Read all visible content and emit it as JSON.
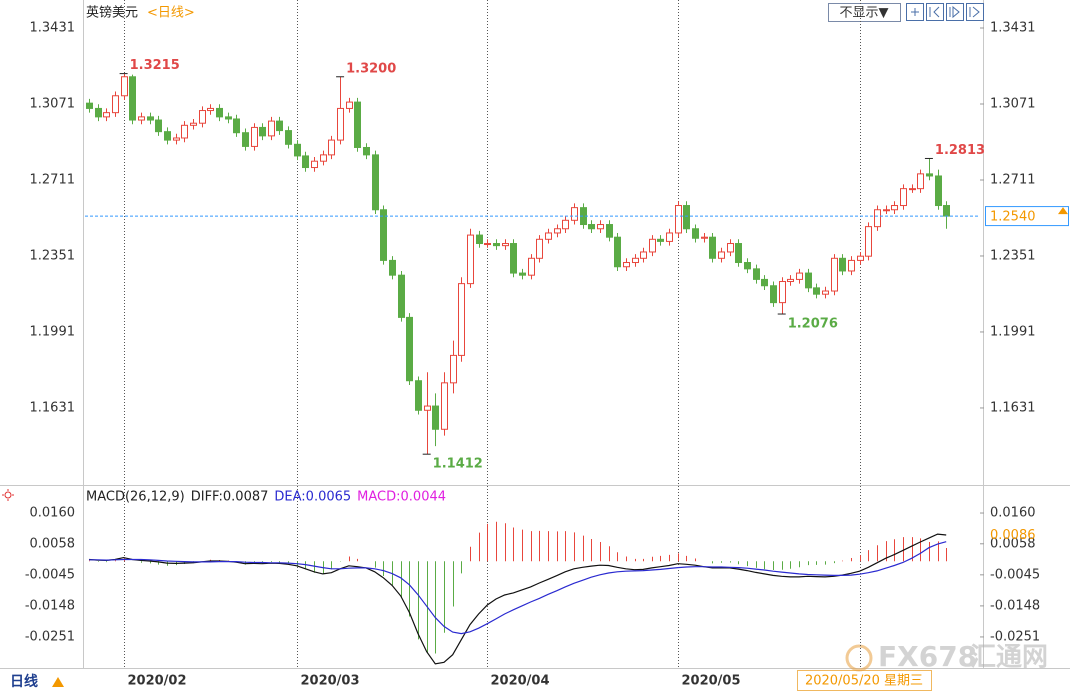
{
  "header": {
    "title": "英镑美元",
    "period": "<日线>",
    "button": "不显示▼"
  },
  "footer": {
    "period": "日线",
    "date": "2020/05/20 星期三"
  },
  "watermark": {
    "brand": "FX678",
    "site": "汇通网"
  },
  "chart_data": {
    "type": "candlestick",
    "up_color": "#e8463c",
    "down_color": "#5aab45",
    "xlim": [
      -0.46,
      102.9
    ],
    "xticks": [
      {
        "value": 4,
        "label": "2020/02"
      },
      {
        "value": 24,
        "label": "2020/03"
      },
      {
        "value": 46,
        "label": "2020/04"
      },
      {
        "value": 68,
        "label": "2020/05"
      },
      {
        "value": 89,
        "label": null
      }
    ],
    "ylim": [
      1.1266,
      1.354
    ],
    "yticks": [
      1.3431,
      1.3071,
      1.2711,
      1.2351,
      1.1991,
      1.1631
    ],
    "last_price": {
      "value": 1.254,
      "label": "1.2540"
    },
    "annotations": [
      {
        "value": 1.3215,
        "label": "1.3215"
      },
      {
        "value": 1.32,
        "label": "1.3200"
      },
      {
        "value": 1.1412,
        "label": "1.1412"
      },
      {
        "value": 1.2076,
        "label": "1.2076"
      },
      {
        "value": 1.2813,
        "label": "1.2813"
      }
    ],
    "candles": {
      "open": [
        1.3075,
        1.305,
        1.301,
        1.303,
        1.311,
        1.32,
        1.2995,
        1.301,
        1.2995,
        1.294,
        1.29,
        1.291,
        1.297,
        1.298,
        1.304,
        1.305,
        1.301,
        1.3,
        1.2935,
        1.287,
        1.296,
        1.292,
        1.299,
        1.2945,
        1.288,
        1.2825,
        1.277,
        1.28,
        1.283,
        1.29,
        1.305,
        1.308,
        1.2865,
        1.283,
        1.257,
        1.233,
        1.226,
        1.206,
        1.176,
        1.162,
        1.164,
        1.153,
        1.175,
        1.188,
        1.222,
        1.245,
        1.241,
        1.241,
        1.24,
        1.241,
        1.227,
        1.226,
        1.234,
        1.243,
        1.246,
        1.248,
        1.252,
        1.258,
        1.25,
        1.248,
        1.25,
        1.244,
        1.23,
        1.232,
        1.234,
        1.237,
        1.243,
        1.242,
        1.246,
        1.259,
        1.248,
        1.2435,
        1.244,
        1.234,
        1.237,
        1.241,
        1.232,
        1.229,
        1.224,
        1.221,
        1.213,
        1.223,
        1.224,
        1.227,
        1.22,
        1.217,
        1.2185,
        1.234,
        1.228,
        1.233,
        1.235,
        1.249,
        1.257,
        1.257,
        1.259,
        1.267,
        1.267,
        1.274,
        1.273,
        1.259
      ],
      "high": [
        1.3095,
        1.307,
        1.305,
        1.313,
        1.3215,
        1.321,
        1.303,
        1.303,
        1.3015,
        1.296,
        1.293,
        1.299,
        1.3,
        1.306,
        1.307,
        1.307,
        1.303,
        1.302,
        1.2955,
        1.298,
        1.298,
        1.301,
        1.301,
        1.2965,
        1.29,
        1.2845,
        1.282,
        1.285,
        1.292,
        1.32,
        1.31,
        1.31,
        1.2885,
        1.285,
        1.259,
        1.235,
        1.228,
        1.208,
        1.178,
        1.18,
        1.17,
        1.18,
        1.195,
        1.225,
        1.248,
        1.247,
        1.243,
        1.243,
        1.243,
        1.243,
        1.229,
        1.236,
        1.245,
        1.248,
        1.25,
        1.254,
        1.26,
        1.26,
        1.252,
        1.252,
        1.252,
        1.246,
        1.234,
        1.236,
        1.239,
        1.245,
        1.245,
        1.248,
        1.261,
        1.261,
        1.25,
        1.246,
        1.246,
        1.239,
        1.243,
        1.243,
        1.234,
        1.231,
        1.226,
        1.223,
        1.225,
        1.226,
        1.229,
        1.229,
        1.222,
        1.2205,
        1.236,
        1.236,
        1.235,
        1.237,
        1.251,
        1.259,
        1.259,
        1.261,
        1.269,
        1.269,
        1.276,
        1.2813,
        1.276,
        1.261
      ],
      "low": [
        1.303,
        1.299,
        1.299,
        1.301,
        1.309,
        1.2975,
        1.2975,
        1.2975,
        1.292,
        1.288,
        1.288,
        1.289,
        1.295,
        1.296,
        1.302,
        1.299,
        1.298,
        1.2915,
        1.285,
        1.285,
        1.29,
        1.29,
        1.2925,
        1.286,
        1.2805,
        1.275,
        1.275,
        1.278,
        1.281,
        1.288,
        1.303,
        1.2845,
        1.281,
        1.255,
        1.231,
        1.224,
        1.204,
        1.174,
        1.16,
        1.1412,
        1.145,
        1.15,
        1.17,
        1.185,
        1.22,
        1.239,
        1.239,
        1.238,
        1.238,
        1.225,
        1.224,
        1.224,
        1.232,
        1.241,
        1.244,
        1.246,
        1.25,
        1.248,
        1.246,
        1.246,
        1.242,
        1.228,
        1.228,
        1.23,
        1.232,
        1.235,
        1.24,
        1.24,
        1.244,
        1.246,
        1.2415,
        1.2415,
        1.232,
        1.232,
        1.235,
        1.23,
        1.227,
        1.222,
        1.219,
        1.211,
        1.2076,
        1.221,
        1.222,
        1.218,
        1.215,
        1.215,
        1.2165,
        1.226,
        1.226,
        1.231,
        1.233,
        1.247,
        1.255,
        1.255,
        1.257,
        1.265,
        1.265,
        1.271,
        1.257,
        1.248
      ],
      "close": [
        1.305,
        1.301,
        1.303,
        1.311,
        1.32,
        1.2995,
        1.301,
        1.2995,
        1.294,
        1.29,
        1.291,
        1.297,
        1.298,
        1.304,
        1.305,
        1.301,
        1.3,
        1.2935,
        1.287,
        1.296,
        1.292,
        1.299,
        1.2945,
        1.288,
        1.2825,
        1.277,
        1.28,
        1.283,
        1.29,
        1.305,
        1.308,
        1.2865,
        1.283,
        1.257,
        1.233,
        1.226,
        1.206,
        1.176,
        1.162,
        1.164,
        1.153,
        1.175,
        1.188,
        1.222,
        1.245,
        1.241,
        1.241,
        1.24,
        1.241,
        1.227,
        1.226,
        1.234,
        1.243,
        1.246,
        1.248,
        1.252,
        1.258,
        1.25,
        1.248,
        1.25,
        1.244,
        1.23,
        1.232,
        1.234,
        1.237,
        1.243,
        1.242,
        1.246,
        1.259,
        1.248,
        1.2435,
        1.244,
        1.234,
        1.237,
        1.241,
        1.232,
        1.229,
        1.224,
        1.221,
        1.213,
        1.223,
        1.224,
        1.227,
        1.22,
        1.217,
        1.2185,
        1.234,
        1.228,
        1.233,
        1.235,
        1.249,
        1.257,
        1.257,
        1.259,
        1.267,
        1.267,
        1.274,
        1.273,
        1.259,
        1.254
      ]
    },
    "macd": {
      "type": "macd",
      "legend": [
        "MACD(26,12,9)",
        "DIFF:0.0087",
        "DEA:0.0065",
        "MACD:0.0044"
      ],
      "legend_colors": [
        "#222222",
        "#222222",
        "#2a2ad0",
        "#e020e0"
      ],
      "ylim": [
        -0.0354,
        0.0243
      ],
      "yticks": [
        {
          "value": 0.016,
          "label": "0.0160"
        },
        0.0058,
        -0.0045,
        -0.0148,
        -0.0251
      ],
      "last_label": {
        "value": 0.0086,
        "label": "0.0086"
      },
      "series": [
        {
          "color": "#111111",
          "values": [
            0.0006,
            0.0004,
            0.0003,
            0.0006,
            0.0012,
            0.0006,
            0.0003,
            0.0001,
            -0.0002,
            -0.0006,
            -0.0007,
            -0.0006,
            -0.0005,
            -0.0002,
            0.0001,
            0.0001,
            0,
            -0.0003,
            -0.0008,
            -0.0007,
            -0.0008,
            -0.0006,
            -0.0007,
            -0.001,
            -0.0015,
            -0.0025,
            -0.0035,
            -0.0042,
            -0.0038,
            -0.0025,
            -0.0015,
            -0.0018,
            -0.0022,
            -0.0035,
            -0.0055,
            -0.008,
            -0.0115,
            -0.017,
            -0.024,
            -0.03,
            -0.034,
            -0.0335,
            -0.031,
            -0.026,
            -0.021,
            -0.0175,
            -0.0145,
            -0.0125,
            -0.0112,
            -0.0105,
            -0.0095,
            -0.0085,
            -0.0072,
            -0.006,
            -0.0048,
            -0.0035,
            -0.0025,
            -0.002,
            -0.0016,
            -0.0013,
            -0.0014,
            -0.002,
            -0.0025,
            -0.0028,
            -0.0027,
            -0.0022,
            -0.0018,
            -0.0014,
            -0.0008,
            -0.001,
            -0.0013,
            -0.0018,
            -0.0022,
            -0.0022,
            -0.0022,
            -0.0026,
            -0.0031,
            -0.0037,
            -0.0042,
            -0.0047,
            -0.005,
            -0.0052,
            -0.0052,
            -0.005,
            -0.0051,
            -0.0052,
            -0.005,
            -0.0046,
            -0.004,
            -0.0033,
            -0.002,
            -0.0005,
            0.001,
            0.0022,
            0.0036,
            0.005,
            0.0064,
            0.0077,
            0.009,
            0.0087
          ]
        },
        {
          "color": "#2a2ad0",
          "values": [
            0.0005,
            0.0005,
            0.0004,
            0.0005,
            0.0006,
            0.0006,
            0.0006,
            0.0005,
            0.0003,
            0.0001,
            0,
            -0.0001,
            -0.0002,
            -0.0002,
            -0.0002,
            -0.0001,
            -0.0001,
            -0.0001,
            -0.0003,
            -0.0004,
            -0.0004,
            -0.0005,
            -0.0005,
            -0.0006,
            -0.0008,
            -0.0011,
            -0.0016,
            -0.0021,
            -0.0025,
            -0.0025,
            -0.0023,
            -0.0022,
            -0.0022,
            -0.0025,
            -0.0031,
            -0.0041,
            -0.0055,
            -0.0078,
            -0.0111,
            -0.0149,
            -0.0187,
            -0.0216,
            -0.0235,
            -0.024,
            -0.0234,
            -0.0222,
            -0.0207,
            -0.0191,
            -0.0175,
            -0.0161,
            -0.0148,
            -0.0135,
            -0.0123,
            -0.011,
            -0.0098,
            -0.0085,
            -0.0073,
            -0.0063,
            -0.0053,
            -0.0045,
            -0.0039,
            -0.0035,
            -0.0033,
            -0.0032,
            -0.0031,
            -0.0029,
            -0.0027,
            -0.0024,
            -0.0021,
            -0.0019,
            -0.0018,
            -0.0018,
            -0.0019,
            -0.0019,
            -0.002,
            -0.0021,
            -0.0023,
            -0.0026,
            -0.0029,
            -0.0033,
            -0.0036,
            -0.0039,
            -0.0042,
            -0.0044,
            -0.0045,
            -0.0046,
            -0.0047,
            -0.0047,
            -0.0046,
            -0.0043,
            -0.0038,
            -0.0032,
            -0.0023,
            -0.0014,
            -0.0004,
            0.001,
            0.0026,
            0.0045,
            0.0057,
            0.0065
          ]
        },
        {
          "type": "histogram",
          "colors": [
            "#e8463c",
            "#5aab45"
          ],
          "values": [
            0.0002,
            -0.0002,
            -0.0003,
            0.0003,
            0.0012,
            0,
            -0.0005,
            -0.0007,
            -0.0011,
            -0.0015,
            -0.0013,
            -0.0009,
            -0.0006,
            0,
            0.0005,
            0.0004,
            0.0002,
            -0.0004,
            -0.0011,
            -0.0007,
            -0.0007,
            -0.0003,
            -0.0004,
            -0.0008,
            -0.0014,
            -0.0027,
            -0.0038,
            -0.0041,
            -0.0027,
            -0.0001,
            0.0016,
            0.0008,
            0,
            -0.0021,
            -0.0049,
            -0.0079,
            -0.0119,
            -0.0183,
            -0.0259,
            -0.0303,
            -0.0306,
            -0.0237,
            -0.015,
            -0.004,
            0.0048,
            0.0095,
            0.0124,
            0.0131,
            0.0126,
            0.0112,
            0.0105,
            0.01,
            0.0101,
            0.01,
            0.0099,
            0.01,
            0.0096,
            0.0085,
            0.0074,
            0.0064,
            0.005,
            0.003,
            0.0016,
            0.0008,
            0.0008,
            0.0015,
            0.0018,
            0.0021,
            0.0026,
            0.0018,
            0.0009,
            0,
            -0.0007,
            -0.0005,
            -0.0004,
            -0.001,
            -0.0016,
            -0.0022,
            -0.0026,
            -0.0029,
            -0.0028,
            -0.0025,
            -0.002,
            -0.0013,
            -0.0012,
            -0.0011,
            -0.0006,
            0.0002,
            0.0011,
            0.002,
            0.0037,
            0.0053,
            0.0067,
            0.0073,
            0.008,
            0.008,
            0.0076,
            0.0064,
            0.0066,
            0.0044
          ]
        }
      ]
    }
  }
}
